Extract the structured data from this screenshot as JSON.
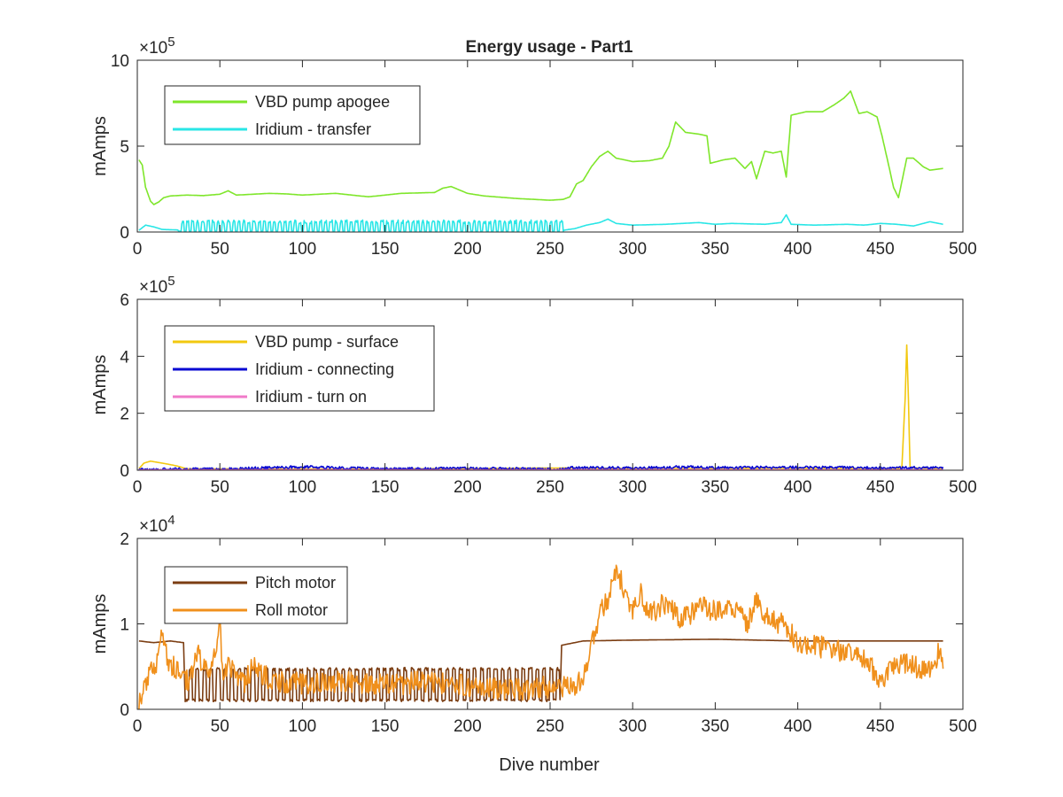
{
  "figure_title": "Energy usage - Part1",
  "xlabel": "Dive number",
  "chart_data": [
    {
      "type": "line",
      "title": "Energy usage - Part1",
      "xlabel": "",
      "ylabel": "mAmps",
      "xlim": [
        0,
        500
      ],
      "ylim": [
        0,
        1000000
      ],
      "x_ticks": [
        "0",
        "50",
        "100",
        "150",
        "200",
        "250",
        "300",
        "350",
        "400",
        "450",
        "500"
      ],
      "y_ticks": [
        "0",
        "5",
        "10"
      ],
      "y_tick_values": [
        0,
        500000,
        1000000
      ],
      "exponent": {
        "base": "×10",
        "power": "5"
      },
      "legend_position": "top-left",
      "series": [
        {
          "name": "VBD pump apogee",
          "color": "#7fe62b",
          "pattern": "none",
          "points": [
            [
              1,
              420000
            ],
            [
              3,
              390000
            ],
            [
              5,
              260000
            ],
            [
              8,
              180000
            ],
            [
              10,
              160000
            ],
            [
              13,
              175000
            ],
            [
              16,
              200000
            ],
            [
              20,
              210000
            ],
            [
              30,
              215000
            ],
            [
              40,
              212000
            ],
            [
              50,
              220000
            ],
            [
              55,
              240000
            ],
            [
              60,
              215000
            ],
            [
              80,
              225000
            ],
            [
              90,
              222000
            ],
            [
              100,
              215000
            ],
            [
              120,
              225000
            ],
            [
              140,
              205000
            ],
            [
              160,
              225000
            ],
            [
              180,
              230000
            ],
            [
              185,
              255000
            ],
            [
              190,
              265000
            ],
            [
              200,
              225000
            ],
            [
              210,
              210000
            ],
            [
              230,
              195000
            ],
            [
              250,
              185000
            ],
            [
              258,
              190000
            ],
            [
              262,
              205000
            ],
            [
              266,
              280000
            ],
            [
              270,
              300000
            ],
            [
              275,
              380000
            ],
            [
              280,
              440000
            ],
            [
              285,
              470000
            ],
            [
              290,
              430000
            ],
            [
              300,
              410000
            ],
            [
              310,
              415000
            ],
            [
              318,
              430000
            ],
            [
              322,
              500000
            ],
            [
              326,
              640000
            ],
            [
              332,
              580000
            ],
            [
              340,
              570000
            ],
            [
              345,
              560000
            ],
            [
              347,
              400000
            ],
            [
              355,
              420000
            ],
            [
              362,
              430000
            ],
            [
              368,
              370000
            ],
            [
              372,
              410000
            ],
            [
              375,
              310000
            ],
            [
              380,
              470000
            ],
            [
              385,
              460000
            ],
            [
              390,
              470000
            ],
            [
              393,
              320000
            ],
            [
              396,
              680000
            ],
            [
              405,
              700000
            ],
            [
              415,
              700000
            ],
            [
              422,
              740000
            ],
            [
              428,
              780000
            ],
            [
              432,
              820000
            ],
            [
              437,
              690000
            ],
            [
              442,
              700000
            ],
            [
              448,
              670000
            ],
            [
              451,
              560000
            ],
            [
              455,
              390000
            ],
            [
              458,
              260000
            ],
            [
              461,
              200000
            ],
            [
              466,
              430000
            ],
            [
              470,
              430000
            ],
            [
              476,
              380000
            ],
            [
              480,
              360000
            ],
            [
              488,
              370000
            ]
          ]
        },
        {
          "name": "Iridium - transfer",
          "color": "#29e6e6",
          "pattern": "none",
          "points": [
            [
              1,
              10000
            ],
            [
              5,
              40000
            ],
            [
              10,
              30000
            ],
            [
              15,
              15000
            ],
            [
              30,
              10000
            ],
            [
              60,
              15000
            ],
            [
              120,
              10000
            ],
            [
              200,
              25000
            ],
            [
              250,
              15000
            ],
            [
              258,
              10000
            ],
            [
              265,
              20000
            ],
            [
              272,
              40000
            ],
            [
              280,
              55000
            ],
            [
              285,
              75000
            ],
            [
              290,
              50000
            ],
            [
              300,
              40000
            ],
            [
              320,
              45000
            ],
            [
              340,
              55000
            ],
            [
              350,
              45000
            ],
            [
              360,
              50000
            ],
            [
              380,
              45000
            ],
            [
              390,
              55000
            ],
            [
              393,
              100000
            ],
            [
              396,
              45000
            ],
            [
              410,
              40000
            ],
            [
              430,
              45000
            ],
            [
              440,
              40000
            ],
            [
              450,
              50000
            ],
            [
              460,
              45000
            ],
            [
              470,
              35000
            ],
            [
              480,
              60000
            ],
            [
              488,
              45000
            ]
          ],
          "spikes": {
            "from": 25,
            "to": 258,
            "period": 3.1,
            "low": 5000,
            "high": 70000
          }
        }
      ]
    },
    {
      "type": "line",
      "title": "",
      "xlabel": "",
      "ylabel": "mAmps",
      "xlim": [
        0,
        500
      ],
      "ylim": [
        0,
        600000
      ],
      "x_ticks": [
        "0",
        "50",
        "100",
        "150",
        "200",
        "250",
        "300",
        "350",
        "400",
        "450",
        "500"
      ],
      "y_ticks": [
        "0",
        "2",
        "4",
        "6"
      ],
      "y_tick_values": [
        0,
        200000,
        400000,
        600000
      ],
      "exponent": {
        "base": "×10",
        "power": "5"
      },
      "legend_position": "top-left",
      "series": [
        {
          "name": "VBD pump - surface",
          "color": "#f2c80f",
          "pattern": "none",
          "points": [
            [
              1,
              5000
            ],
            [
              4,
              25000
            ],
            [
              8,
              32000
            ],
            [
              12,
              28000
            ],
            [
              18,
              22000
            ],
            [
              24,
              15000
            ],
            [
              30,
              5000
            ],
            [
              60,
              5000
            ],
            [
              120,
              4000
            ],
            [
              200,
              6000
            ],
            [
              260,
              8000
            ],
            [
              300,
              6000
            ],
            [
              400,
              7000
            ],
            [
              463,
              6000
            ],
            [
              465,
              250000
            ],
            [
              466,
              440000
            ],
            [
              467,
              250000
            ],
            [
              468,
              8000
            ],
            [
              488,
              6000
            ]
          ]
        },
        {
          "name": "Iridium - connecting",
          "color": "#0a0ad2",
          "pattern": "none",
          "points": [
            [
              1,
              2000
            ],
            [
              20,
              4000
            ],
            [
              50,
              3000
            ],
            [
              100,
              12000
            ],
            [
              150,
              4000
            ],
            [
              200,
              6000
            ],
            [
              257,
              3000
            ],
            [
              260,
              9000
            ],
            [
              300,
              8000
            ],
            [
              330,
              11000
            ],
            [
              350,
              9000
            ],
            [
              400,
              10000
            ],
            [
              450,
              8000
            ],
            [
              488,
              9000
            ]
          ],
          "noise": 5000
        },
        {
          "name": "Iridium - turn on",
          "color": "#f07ac8",
          "pattern": "none",
          "points": [
            [
              1,
              1000
            ],
            [
              100,
              2000
            ],
            [
              200,
              1500
            ],
            [
              300,
              2000
            ],
            [
              400,
              1500
            ],
            [
              488,
              1500
            ]
          ]
        }
      ]
    },
    {
      "type": "line",
      "title": "",
      "xlabel": "Dive number",
      "ylabel": "mAmps",
      "xlim": [
        0,
        500
      ],
      "ylim": [
        0,
        20000
      ],
      "x_ticks": [
        "0",
        "50",
        "100",
        "150",
        "200",
        "250",
        "300",
        "350",
        "400",
        "450",
        "500"
      ],
      "y_ticks": [
        "0",
        "1",
        "2"
      ],
      "y_tick_values": [
        0,
        10000,
        20000
      ],
      "exponent": {
        "base": "×10",
        "power": "4"
      },
      "legend_position": "top-left",
      "series": [
        {
          "name": "Pitch motor",
          "color": "#7b3d12",
          "pattern": "none",
          "points": [
            [
              1,
              8000
            ],
            [
              10,
              7800
            ],
            [
              20,
              8000
            ],
            [
              28,
              7800
            ],
            [
              29,
              1000
            ],
            [
              256,
              900
            ],
            [
              257,
              7500
            ],
            [
              270,
              8000
            ],
            [
              300,
              8100
            ],
            [
              350,
              8200
            ],
            [
              400,
              8000
            ],
            [
              450,
              8000
            ],
            [
              488,
              8000
            ]
          ],
          "oscillation": {
            "from": 29,
            "to": 256,
            "period": 4.2,
            "low": 900,
            "high": 4900
          }
        },
        {
          "name": "Roll motor",
          "color": "#f0901c",
          "pattern": "none",
          "points": [
            [
              1,
              700
            ],
            [
              4,
              2500
            ],
            [
              8,
              4200
            ],
            [
              12,
              5800
            ],
            [
              15,
              9800
            ],
            [
              18,
              6000
            ],
            [
              22,
              5000
            ],
            [
              28,
              4000
            ],
            [
              32,
              3000
            ],
            [
              35,
              7000
            ],
            [
              40,
              5000
            ],
            [
              45,
              4500
            ],
            [
              50,
              10000
            ],
            [
              52,
              3000
            ],
            [
              55,
              5500
            ],
            [
              60,
              4000
            ],
            [
              65,
              3200
            ],
            [
              70,
              5000
            ],
            [
              80,
              3500
            ],
            [
              90,
              3200
            ],
            [
              100,
              3000
            ],
            [
              115,
              3200
            ],
            [
              130,
              3100
            ],
            [
              150,
              2800
            ],
            [
              170,
              3200
            ],
            [
              190,
              3000
            ],
            [
              210,
              2500
            ],
            [
              230,
              2300
            ],
            [
              245,
              2600
            ],
            [
              255,
              2400
            ],
            [
              265,
              2900
            ],
            [
              270,
              3200
            ],
            [
              275,
              7500
            ],
            [
              280,
              11000
            ],
            [
              285,
              13000
            ],
            [
              290,
              16700
            ],
            [
              295,
              14000
            ],
            [
              300,
              11500
            ],
            [
              305,
              13500
            ],
            [
              310,
              11000
            ],
            [
              320,
              12500
            ],
            [
              330,
              10500
            ],
            [
              340,
              12000
            ],
            [
              350,
              11500
            ],
            [
              360,
              12000
            ],
            [
              370,
              10000
            ],
            [
              375,
              13000
            ],
            [
              380,
              11000
            ],
            [
              390,
              10000
            ],
            [
              400,
              8000
            ],
            [
              410,
              7500
            ],
            [
              420,
              7000
            ],
            [
              430,
              6500
            ],
            [
              440,
              6000
            ],
            [
              450,
              3500
            ],
            [
              455,
              4200
            ],
            [
              460,
              5500
            ],
            [
              470,
              5000
            ],
            [
              480,
              4500
            ],
            [
              485,
              6500
            ],
            [
              488,
              6000
            ]
          ],
          "noise": 1300
        }
      ]
    }
  ]
}
